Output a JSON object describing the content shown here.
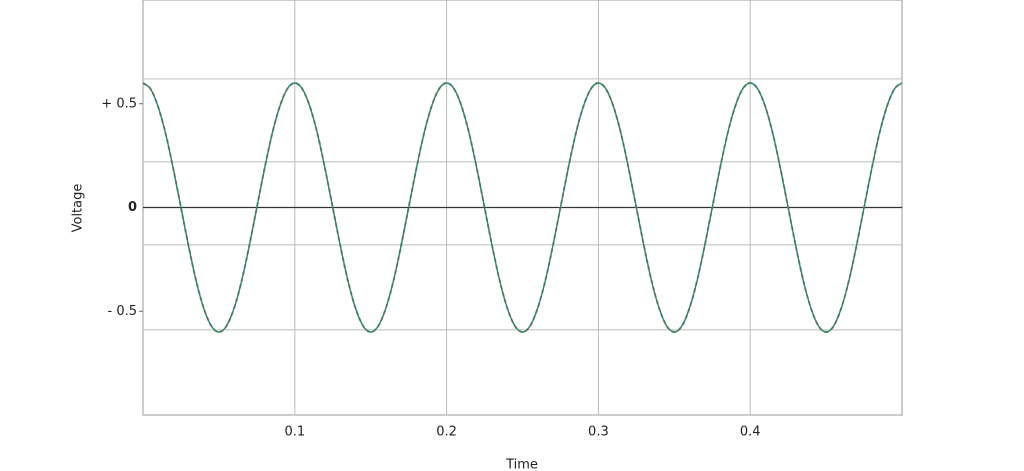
{
  "chart_data": {
    "type": "line",
    "x_label": "Time",
    "y_label": "Voltage",
    "x": [
      0,
      0.005,
      0.01,
      0.015,
      0.02,
      0.025,
      0.03,
      0.035,
      0.04,
      0.045,
      0.05,
      0.055,
      0.06,
      0.065,
      0.07,
      0.075,
      0.08,
      0.085,
      0.09,
      0.095,
      0.1,
      0.105,
      0.11,
      0.115,
      0.12,
      0.125,
      0.13,
      0.135,
      0.14,
      0.145,
      0.15,
      0.155,
      0.16,
      0.165,
      0.17,
      0.175,
      0.18,
      0.185,
      0.19,
      0.195,
      0.2,
      0.205,
      0.21,
      0.215,
      0.22,
      0.225,
      0.23,
      0.235,
      0.24,
      0.245,
      0.25,
      0.255,
      0.26,
      0.265,
      0.27,
      0.275,
      0.28,
      0.285,
      0.29,
      0.295,
      0.3,
      0.305,
      0.31,
      0.315,
      0.32,
      0.325,
      0.33,
      0.335,
      0.34,
      0.345,
      0.35,
      0.355,
      0.36,
      0.365,
      0.37,
      0.375,
      0.38,
      0.385,
      0.39,
      0.395,
      0.4,
      0.405,
      0.41,
      0.415,
      0.42,
      0.425,
      0.43,
      0.435,
      0.44,
      0.445,
      0.45,
      0.455,
      0.46,
      0.465,
      0.47,
      0.475,
      0.48,
      0.485,
      0.49,
      0.495,
      0.5
    ],
    "series": [
      {
        "color": "#e8743b",
        "dash": true,
        "values": [
          0.6,
          0.571,
          0.485,
          0.353,
          0.185,
          0,
          -0.185,
          -0.353,
          -0.485,
          -0.571,
          -0.6,
          -0.571,
          -0.485,
          -0.353,
          -0.185,
          0,
          0.185,
          0.353,
          0.485,
          0.571,
          0.6,
          0.571,
          0.485,
          0.353,
          0.185,
          0,
          -0.185,
          -0.353,
          -0.485,
          -0.571,
          -0.6,
          -0.571,
          -0.485,
          -0.353,
          -0.185,
          0,
          0.185,
          0.353,
          0.485,
          0.571,
          0.6,
          0.571,
          0.485,
          0.353,
          0.185,
          0,
          -0.185,
          -0.353,
          -0.485,
          -0.571,
          -0.6,
          -0.571,
          -0.485,
          -0.353,
          -0.185,
          0,
          0.185,
          0.353,
          0.485,
          0.571,
          0.6,
          0.571,
          0.485,
          0.353,
          0.185,
          0,
          -0.185,
          -0.353,
          -0.485,
          -0.571,
          -0.6,
          -0.571,
          -0.485,
          -0.353,
          -0.185,
          0,
          0.185,
          0.353,
          0.485,
          0.571,
          0.6,
          0.571,
          0.485,
          0.353,
          0.185,
          0,
          -0.185,
          -0.353,
          -0.485,
          -0.571,
          -0.6,
          -0.571,
          -0.485,
          -0.353,
          -0.185,
          0,
          0.185,
          0.353,
          0.485,
          0.571,
          0.6
        ]
      },
      {
        "color": "#1f8a70",
        "dash": false,
        "values": [
          0.6,
          0.571,
          0.485,
          0.353,
          0.185,
          0,
          -0.185,
          -0.353,
          -0.485,
          -0.571,
          -0.6,
          -0.571,
          -0.485,
          -0.353,
          -0.185,
          0,
          0.185,
          0.353,
          0.485,
          0.571,
          0.6,
          0.571,
          0.485,
          0.353,
          0.185,
          0,
          -0.185,
          -0.353,
          -0.485,
          -0.571,
          -0.6,
          -0.571,
          -0.485,
          -0.353,
          -0.185,
          0,
          0.185,
          0.353,
          0.485,
          0.571,
          0.6,
          0.571,
          0.485,
          0.353,
          0.185,
          0,
          -0.185,
          -0.353,
          -0.485,
          -0.571,
          -0.6,
          -0.571,
          -0.485,
          -0.353,
          -0.185,
          0,
          0.185,
          0.353,
          0.485,
          0.571,
          0.6,
          0.571,
          0.485,
          0.353,
          0.185,
          0,
          -0.185,
          -0.353,
          -0.485,
          -0.571,
          -0.6,
          -0.571,
          -0.485,
          -0.353,
          -0.185,
          0,
          0.185,
          0.353,
          0.485,
          0.571,
          0.6,
          0.571,
          0.485,
          0.353,
          0.185,
          0,
          -0.185,
          -0.353,
          -0.485,
          -0.571,
          -0.6,
          -0.571,
          -0.485,
          -0.353,
          -0.185,
          0,
          0.185,
          0.353,
          0.485,
          0.571,
          0.6
        ]
      }
    ],
    "xlim": [
      0,
      0.5
    ],
    "ylim": [
      -1,
      1
    ],
    "xticks": [
      0.1,
      0.2,
      0.3,
      0.4
    ],
    "yticks": [
      {
        "value": 0.5,
        "label": "+ 0.5"
      },
      0,
      {
        "value": -0.5,
        "label": "- 0.5"
      }
    ],
    "y_gridlines": [
      0.62,
      0.22,
      -0.18,
      -0.59
    ],
    "grid": true
  }
}
